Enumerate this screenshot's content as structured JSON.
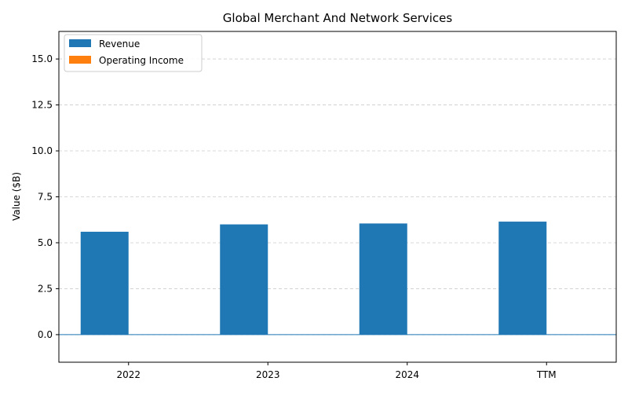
{
  "chart_data": {
    "type": "bar",
    "title": "Global Merchant And Network Services",
    "xlabel": "",
    "ylabel": "Value ($B)",
    "categories": [
      "2022",
      "2023",
      "2024",
      "TTM"
    ],
    "series": [
      {
        "name": "Revenue",
        "color": "#1f77b4",
        "values": [
          5.6,
          6.0,
          6.05,
          6.15
        ]
      },
      {
        "name": "Operating Income",
        "color": "#ff7f0e",
        "values": [
          0,
          0,
          0,
          0
        ]
      }
    ],
    "ylim": [
      -1.5,
      16.5
    ],
    "yticks": [
      0.0,
      2.5,
      5.0,
      7.5,
      10.0,
      12.5,
      15.0
    ],
    "ytick_labels": [
      "0.0",
      "2.5",
      "5.0",
      "7.5",
      "10.0",
      "12.5",
      "15.0"
    ],
    "grid": true,
    "legend_position": "top-left",
    "zero_line_color": "#1f77b4"
  }
}
